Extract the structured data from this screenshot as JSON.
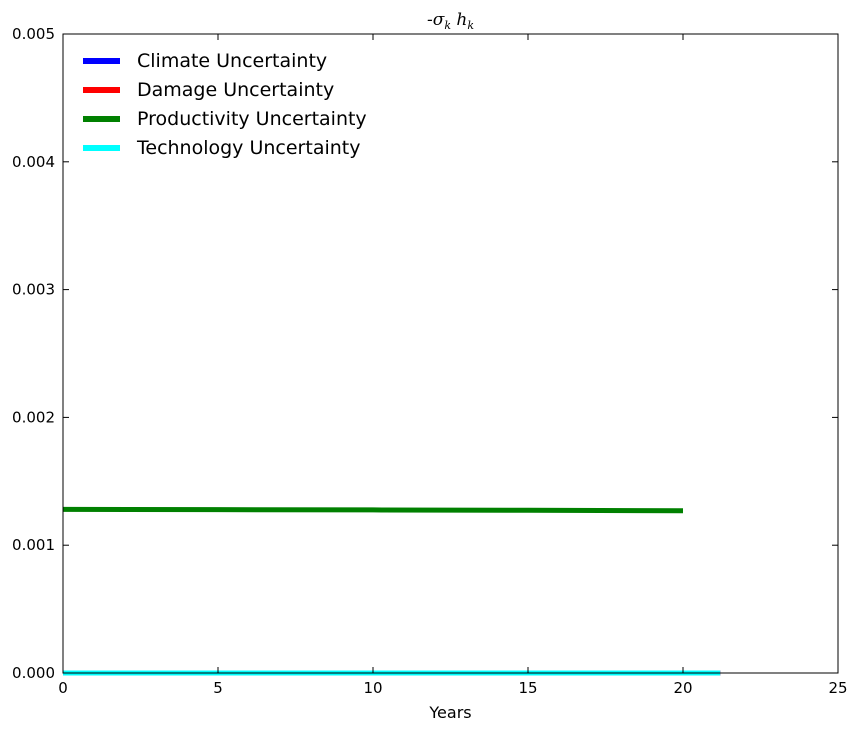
{
  "chart_data": {
    "type": "line",
    "title": "-σ_k h_k",
    "xlabel": "Years",
    "ylabel": "",
    "xlim": [
      0,
      25
    ],
    "ylim": [
      0,
      0.005
    ],
    "x_ticks": [
      "0",
      "5",
      "10",
      "15",
      "20",
      "25"
    ],
    "y_ticks": [
      "0.000",
      "0.001",
      "0.002",
      "0.003",
      "0.004",
      "0.005"
    ],
    "grid": false,
    "legend_position": "top-left",
    "series": [
      {
        "name": "Climate Uncertainty",
        "color": "#0000ff",
        "x": [
          0,
          21.2
        ],
        "y": [
          0.0,
          0.0
        ]
      },
      {
        "name": "Damage Uncertainty",
        "color": "#ff0000",
        "x": [
          0,
          21.2
        ],
        "y": [
          0.0,
          0.0
        ]
      },
      {
        "name": "Productivity Uncertainty",
        "color": "#008000",
        "x": [
          0,
          5,
          10,
          15,
          20
        ],
        "y": [
          0.00128,
          0.001278,
          0.001276,
          0.001273,
          0.00127
        ]
      },
      {
        "name": "Technology Uncertainty",
        "color": "#00ffff",
        "x": [
          0,
          21.2
        ],
        "y": [
          0.0,
          0.0
        ]
      }
    ]
  }
}
